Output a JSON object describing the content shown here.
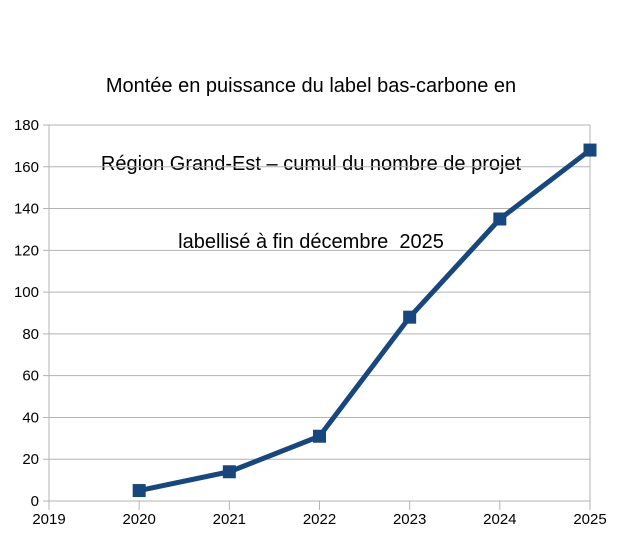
{
  "chart_data": {
    "type": "line",
    "title": "Montée en puissance du label bas-carbone en Région Grand-Est – cumul du nombre de projet labellisé à fin décembre  2025",
    "title_lines": [
      "Montée en puissance du label bas-carbone en",
      "Région Grand-Est – cumul du nombre de projet",
      "labellisé à fin décembre  2025"
    ],
    "x": [
      2020,
      2021,
      2022,
      2023,
      2024,
      2025
    ],
    "values": [
      5,
      14,
      31,
      88,
      135,
      168
    ],
    "xlabel": "",
    "ylabel": "",
    "xlim": [
      2019,
      2025
    ],
    "ylim": [
      0,
      180
    ],
    "xticks": [
      2019,
      2020,
      2021,
      2022,
      2023,
      2024,
      2025
    ],
    "yticks": [
      0,
      20,
      40,
      60,
      80,
      100,
      120,
      140,
      160,
      180
    ],
    "grid": "horizontal-only",
    "legend_position": "none",
    "marker": "square",
    "colors": {
      "series": "#17477c",
      "grid": "#b3b3b3",
      "text": "#000000",
      "background": "#ffffff"
    }
  }
}
